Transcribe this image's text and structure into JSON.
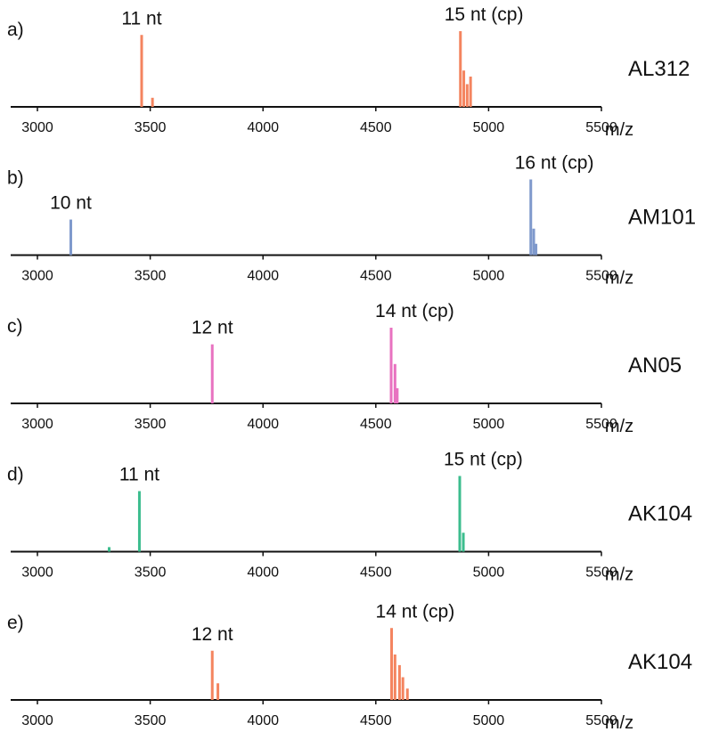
{
  "chart_data": [
    {
      "type": "bar",
      "panel_label": "a)",
      "sample": "AL312",
      "xlabel": "m/z",
      "xlim": [
        2900,
        5500
      ],
      "ylim": [
        0,
        1
      ],
      "xticks": [
        3000,
        3500,
        4000,
        4500,
        5000,
        5500
      ],
      "color": "#F4845F",
      "peaks": [
        {
          "x": 3462,
          "y": 0.95
        },
        {
          "x": 3510,
          "y": 0.12
        },
        {
          "x": 4875,
          "y": 1.0
        },
        {
          "x": 4890,
          "y": 0.48
        },
        {
          "x": 4905,
          "y": 0.3
        },
        {
          "x": 4920,
          "y": 0.4
        }
      ],
      "annotations": [
        {
          "text": "11 nt",
          "x": 3462
        },
        {
          "text": "15 nt (cp)",
          "x": 4875
        }
      ]
    },
    {
      "type": "bar",
      "panel_label": "b)",
      "sample": "AM101",
      "xlabel": "m/z",
      "xlim": [
        2900,
        5500
      ],
      "ylim": [
        0,
        1
      ],
      "xticks": [
        3000,
        3500,
        4000,
        4500,
        5000,
        5500
      ],
      "color": "#7F99CC",
      "peaks": [
        {
          "x": 3148,
          "y": 0.47
        },
        {
          "x": 5187,
          "y": 1.0
        },
        {
          "x": 5200,
          "y": 0.35
        },
        {
          "x": 5210,
          "y": 0.15
        }
      ],
      "annotations": [
        {
          "text": "10 nt",
          "x": 3148
        },
        {
          "text": "16 nt (cp)",
          "x": 5187
        }
      ]
    },
    {
      "type": "bar",
      "panel_label": "c)",
      "sample": "AN05",
      "xlabel": "m/z",
      "xlim": [
        2900,
        5500
      ],
      "ylim": [
        0,
        1
      ],
      "xticks": [
        3000,
        3500,
        4000,
        4500,
        5000,
        5500
      ],
      "color": "#E872C0",
      "peaks": [
        {
          "x": 3775,
          "y": 0.78
        },
        {
          "x": 4568,
          "y": 1.0
        },
        {
          "x": 4585,
          "y": 0.52
        },
        {
          "x": 4595,
          "y": 0.2
        }
      ],
      "annotations": [
        {
          "text": "12 nt",
          "x": 3775
        },
        {
          "text": "14 nt (cp)",
          "x": 4568
        }
      ]
    },
    {
      "type": "bar",
      "panel_label": "d)",
      "sample": "AK104",
      "xlabel": "m/z",
      "xlim": [
        2900,
        5500
      ],
      "ylim": [
        0,
        1
      ],
      "xticks": [
        3000,
        3500,
        4000,
        4500,
        5000,
        5500
      ],
      "color": "#3CBD8E",
      "peaks": [
        {
          "x": 3318,
          "y": 0.06
        },
        {
          "x": 3452,
          "y": 0.8
        },
        {
          "x": 4872,
          "y": 1.0
        },
        {
          "x": 4888,
          "y": 0.25
        }
      ],
      "annotations": [
        {
          "text": "11 nt",
          "x": 3452
        },
        {
          "text": "15 nt (cp)",
          "x": 4872
        }
      ]
    },
    {
      "type": "bar",
      "panel_label": "e)",
      "sample": "AK104",
      "xlabel": "m/z",
      "xlim": [
        2900,
        5500
      ],
      "ylim": [
        0,
        1
      ],
      "xticks": [
        3000,
        3500,
        4000,
        4500,
        5000,
        5500
      ],
      "color": "#F4845F",
      "peaks": [
        {
          "x": 3775,
          "y": 0.65
        },
        {
          "x": 3800,
          "y": 0.22
        },
        {
          "x": 4570,
          "y": 0.95
        },
        {
          "x": 4585,
          "y": 0.6
        },
        {
          "x": 4605,
          "y": 0.46
        },
        {
          "x": 4620,
          "y": 0.3
        },
        {
          "x": 4640,
          "y": 0.15
        }
      ],
      "annotations": [
        {
          "text": "12 nt",
          "x": 3775
        },
        {
          "text": "14 nt (cp)",
          "x": 4570
        }
      ]
    }
  ]
}
